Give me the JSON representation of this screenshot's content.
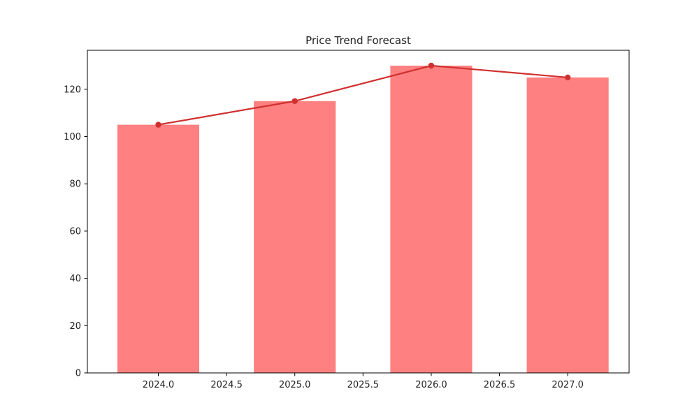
{
  "chart_data": {
    "type": "bar",
    "title": "Price Trend Forecast",
    "xlabel": "",
    "ylabel": "",
    "x": [
      2024.0,
      2025.0,
      2026.0,
      2027.0
    ],
    "values": [
      105,
      115,
      130,
      125
    ],
    "line_values": [
      105,
      115,
      130,
      125
    ],
    "xlim": [
      2023.48,
      2027.45
    ],
    "ylim": [
      0,
      136.5
    ],
    "x_ticks": [
      2024.0,
      2024.5,
      2025.0,
      2025.5,
      2026.0,
      2026.5,
      2027.0
    ],
    "x_tick_labels": [
      "2024.0",
      "2024.5",
      "2025.0",
      "2025.5",
      "2026.0",
      "2026.5",
      "2027.0"
    ],
    "y_ticks": [
      0,
      20,
      40,
      60,
      80,
      100,
      120
    ],
    "y_tick_labels": [
      "0",
      "20",
      "40",
      "60",
      "80",
      "100",
      "120"
    ],
    "bar_width": 0.6,
    "grid": false,
    "colors": {
      "bar": "#ff8080",
      "line": "#d03030",
      "marker": "#d03030"
    }
  }
}
